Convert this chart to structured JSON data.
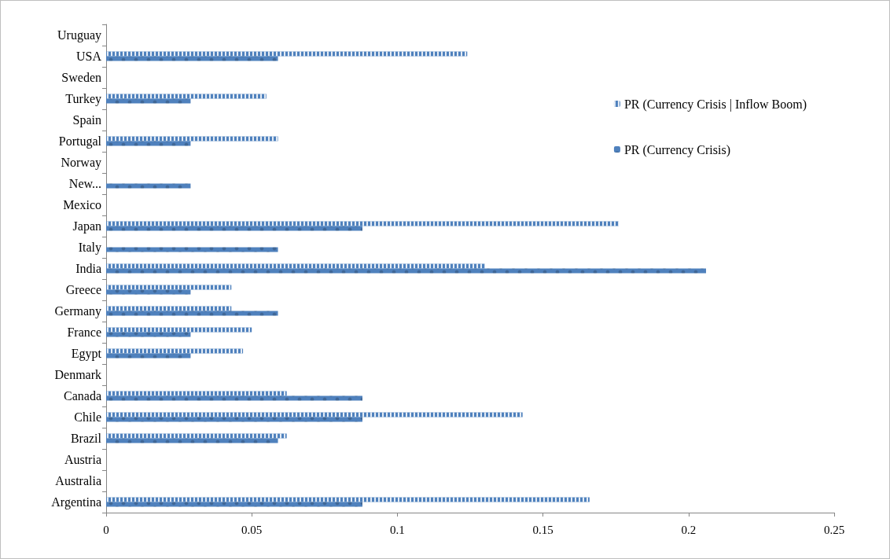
{
  "chart_data": {
    "type": "bar",
    "orientation": "horizontal",
    "categories": [
      "Uruguay",
      "USA",
      "Sweden",
      "Turkey",
      "Spain",
      "Portugal",
      "Norway",
      "New...",
      "Mexico",
      "Japan",
      "Italy",
      "India",
      "Greece",
      "Germany",
      "France",
      "Egypt",
      "Denmark",
      "Canada",
      "Chile",
      "Brazil",
      "Austria",
      "Australia",
      "Argentina"
    ],
    "series": [
      {
        "name": "PR (Currency Crisis | Inflow Boom)",
        "color": "#4f81bd",
        "values": [
          null,
          0.124,
          null,
          0.055,
          null,
          0.059,
          null,
          null,
          null,
          0.176,
          null,
          0.13,
          0.043,
          0.043,
          0.05,
          0.047,
          null,
          0.062,
          0.143,
          0.062,
          null,
          null,
          0.166
        ]
      },
      {
        "name": "PR (Currency Crisis)",
        "color": "#4f81bd",
        "values": [
          null,
          0.059,
          null,
          0.029,
          null,
          0.029,
          null,
          0.029,
          null,
          0.088,
          0.059,
          0.206,
          0.029,
          0.059,
          0.029,
          0.029,
          null,
          0.088,
          0.088,
          0.059,
          null,
          null,
          0.088
        ]
      }
    ],
    "xlim": [
      0,
      0.25
    ],
    "xticks": [
      0,
      0.05,
      0.1,
      0.15,
      0.2,
      0.25
    ],
    "grid": false,
    "legend": "top right"
  }
}
